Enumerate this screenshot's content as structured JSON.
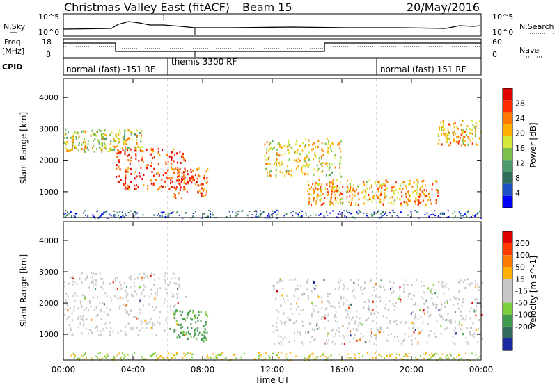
{
  "header": {
    "title": "Christmas Valley East (fitACF)",
    "beam": "Beam 15",
    "date": "20/May/2016"
  },
  "panels": {
    "nsky": {
      "label": "N.Sky",
      "tick_top": "10^5",
      "tick_bottom": "10^0",
      "right_label": "N.Search",
      "right_tick_top": "10^5",
      "right_tick_bottom": "10^0"
    },
    "freq": {
      "label": "Freq.",
      "unit": "[MHz]",
      "tick_top": "18",
      "tick_bottom": "8",
      "right_label": "Nave",
      "right_tick_top": "60",
      "right_tick_bottom": "0"
    },
    "cpid": {
      "label": "CPID",
      "segments": [
        {
          "label": "normal (fast) -151 RF",
          "start_hour": 0,
          "end_hour": 6
        },
        {
          "label": "themis 3300 RF",
          "start_hour": 6,
          "end_hour": 18
        },
        {
          "label": "normal (fast) 151 RF",
          "start_hour": 18,
          "end_hour": 24
        }
      ]
    }
  },
  "chart_data": [
    {
      "type": "heatmap",
      "title": "",
      "xlabel": "Time UT",
      "ylabel": "Slant Range [km]",
      "x_ticks": [
        "00:00",
        "04:00",
        "08:00",
        "12:00",
        "16:00",
        "20:00",
        "00:00"
      ],
      "x_range_hours": [
        0,
        24
      ],
      "y_ticks": [
        1000,
        2000,
        3000,
        4000
      ],
      "ylim": [
        180,
        4600
      ],
      "colorbar": {
        "label": "Power [dB]",
        "ticks": [
          4,
          8,
          12,
          16,
          20,
          24,
          28
        ],
        "colors": [
          "#0000ff",
          "#1e50c8",
          "#2d6e5a",
          "#4a9a6a",
          "#7cc04a",
          "#d8e83a",
          "#ffb000",
          "#ff7a00",
          "#ff2a00",
          "#e00000"
        ]
      },
      "regions": [
        {
          "name": "arc-0-5h",
          "start_hour": 0,
          "end_hour": 4.5,
          "range_km": [
            2300,
            3000
          ],
          "level": 0.55
        },
        {
          "name": "arc-3-7h",
          "start_hour": 3,
          "end_hour": 7,
          "range_km": [
            1100,
            2400
          ],
          "level": 0.9
        },
        {
          "name": "patch-7-8h",
          "start_hour": 6.3,
          "end_hour": 8.3,
          "range_km": [
            800,
            1800
          ],
          "level": 0.85
        },
        {
          "name": "band-12-16h",
          "start_hour": 11.5,
          "end_hour": 16,
          "range_km": [
            1500,
            2700
          ],
          "level": 0.6
        },
        {
          "name": "band-14-22h",
          "start_hour": 14,
          "end_hour": 21.5,
          "range_km": [
            600,
            1400
          ],
          "level": 0.7
        },
        {
          "name": "arc-21-24h",
          "start_hour": 21.5,
          "end_hour": 24,
          "range_km": [
            2500,
            3300
          ],
          "level": 0.65
        }
      ]
    },
    {
      "type": "heatmap",
      "title": "",
      "xlabel": "Time UT",
      "ylabel": "Slant Range [km]",
      "x_ticks": [
        "00:00",
        "04:00",
        "08:00",
        "12:00",
        "16:00",
        "20:00",
        "00:00"
      ],
      "x_range_hours": [
        0,
        24
      ],
      "y_ticks": [
        1000,
        2000,
        3000,
        4000
      ],
      "ylim": [
        180,
        4600
      ],
      "colorbar": {
        "label": "Velocity [m s^-1]",
        "ticks": [
          200,
          100,
          50,
          15,
          -15,
          -50,
          -100,
          -200
        ],
        "colors": [
          "#1a2aa0",
          "#2f6a5a",
          "#3f9a4a",
          "#7ccf3a",
          "#c8c8c8",
          "#c8c8c8",
          "#ffb000",
          "#ff7a00",
          "#ff3a00",
          "#e00000"
        ]
      },
      "regions": [
        {
          "name": "gray-0-7h",
          "start_hour": 0,
          "end_hour": 7,
          "range_km": [
            1000,
            3000
          ],
          "level": 0.5
        },
        {
          "name": "green-patch",
          "start_hour": 6.3,
          "end_hour": 8.3,
          "range_km": [
            800,
            1800
          ],
          "level": 0.25
        },
        {
          "name": "gray-12-24h",
          "start_hour": 12,
          "end_hour": 24,
          "range_km": [
            700,
            2800
          ],
          "level": 0.5
        }
      ]
    }
  ]
}
